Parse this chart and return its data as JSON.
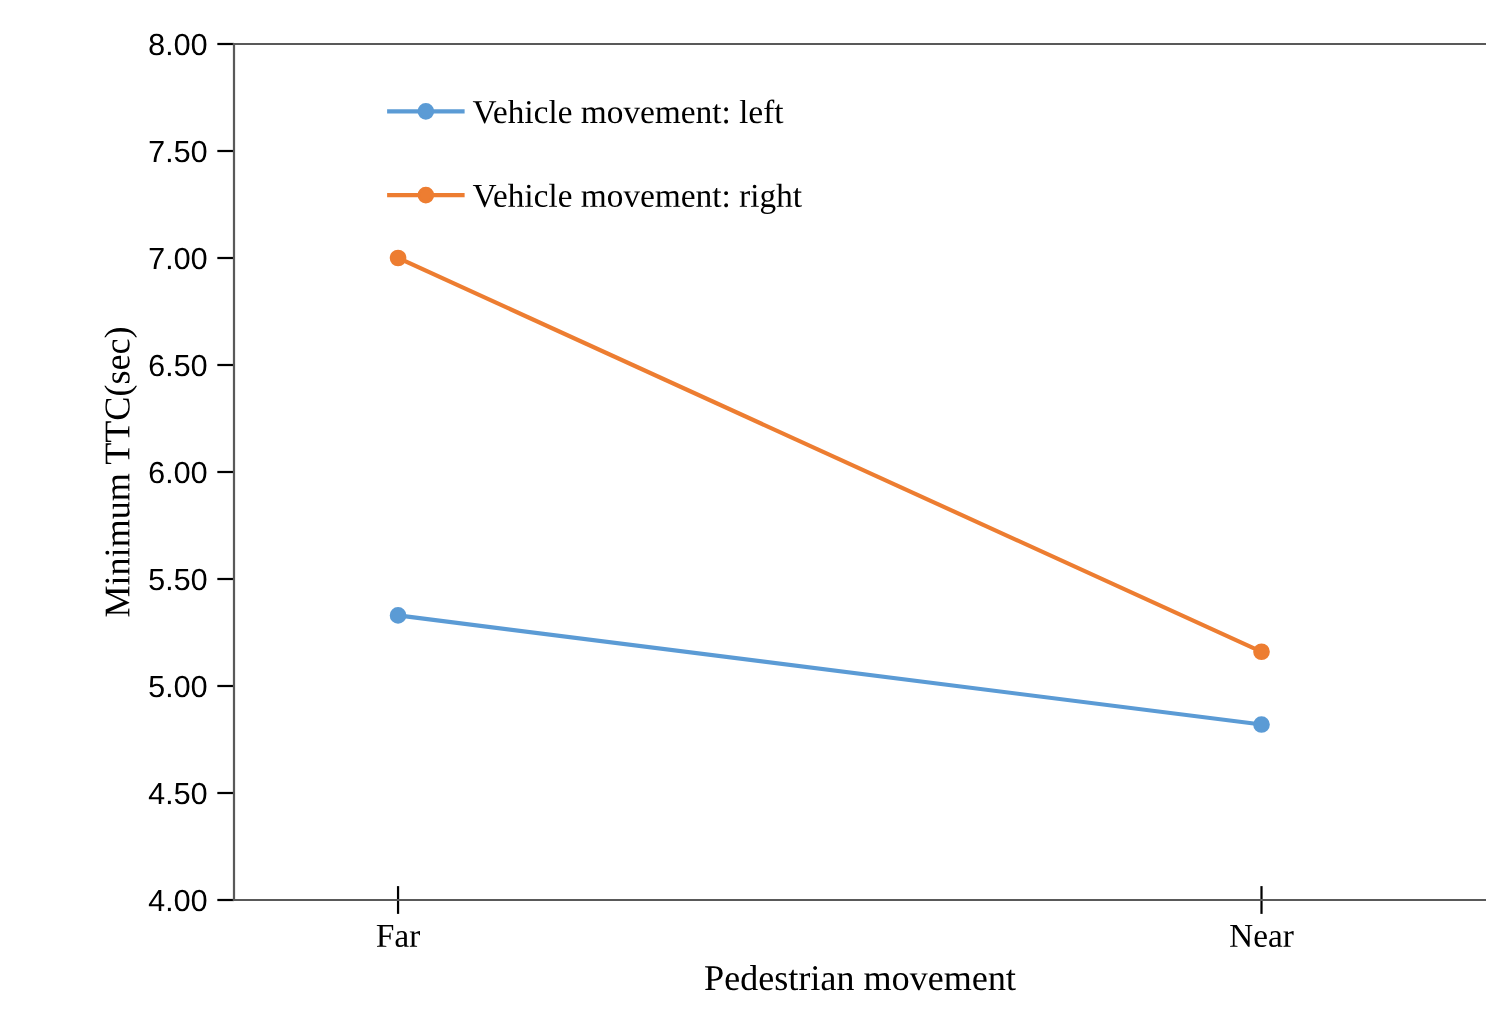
{
  "chart_data": {
    "type": "line",
    "xlabel": "Pedestrian movement",
    "ylabel": "Minimum TTC(sec)",
    "categories": [
      "Far",
      "Near"
    ],
    "series": [
      {
        "name": "Vehicle movement: left",
        "color": "#5b9bd5",
        "values": [
          5.33,
          4.82
        ]
      },
      {
        "name": "Vehicle movement: right",
        "color": "#ed7d31",
        "values": [
          7.0,
          5.16
        ]
      }
    ],
    "ylim": [
      4.0,
      8.0
    ],
    "yticks": [
      {
        "value": 4.0,
        "label": "4.00"
      },
      {
        "value": 4.5,
        "label": "4.50"
      },
      {
        "value": 5.0,
        "label": "5.00"
      },
      {
        "value": 5.5,
        "label": "5.50"
      },
      {
        "value": 6.0,
        "label": "6.00"
      },
      {
        "value": 6.5,
        "label": "6.50"
      },
      {
        "value": 7.0,
        "label": "7.00"
      },
      {
        "value": 7.5,
        "label": "7.50"
      },
      {
        "value": 8.0,
        "label": "8.00"
      }
    ],
    "grid": false,
    "legend": "top left",
    "marker": "circle",
    "line_style": "solid"
  }
}
